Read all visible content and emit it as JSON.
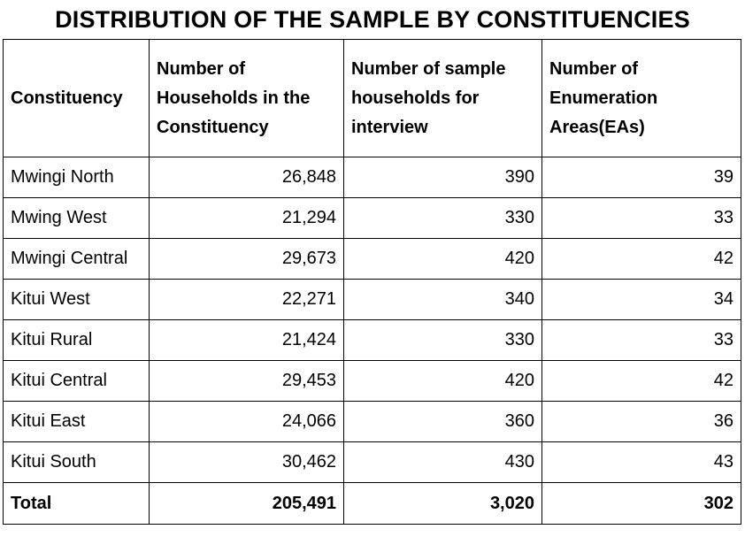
{
  "title": "DISTRIBUTION OF THE SAMPLE BY CONSTITUENCIES",
  "table": {
    "headers": [
      "Constituency",
      "Number of Households in the Constituency",
      "Number of sample households for interview",
      "Number of Enumeration Areas(EAs)"
    ],
    "rows": [
      [
        "Mwingi North",
        "26,848",
        "390",
        "39"
      ],
      [
        "Mwing West",
        "21,294",
        "330",
        "33"
      ],
      [
        "Mwingi Central",
        "29,673",
        "420",
        "42"
      ],
      [
        "Kitui West",
        "22,271",
        "340",
        "34"
      ],
      [
        "Kitui Rural",
        "21,424",
        "330",
        "33"
      ],
      [
        "Kitui Central",
        "29,453",
        "420",
        "42"
      ],
      [
        "Kitui East",
        "24,066",
        "360",
        "36"
      ],
      [
        "Kitui South",
        "30,462",
        "430",
        "43"
      ]
    ],
    "total": [
      "Total",
      "205,491",
      "3,020",
      "302"
    ]
  }
}
